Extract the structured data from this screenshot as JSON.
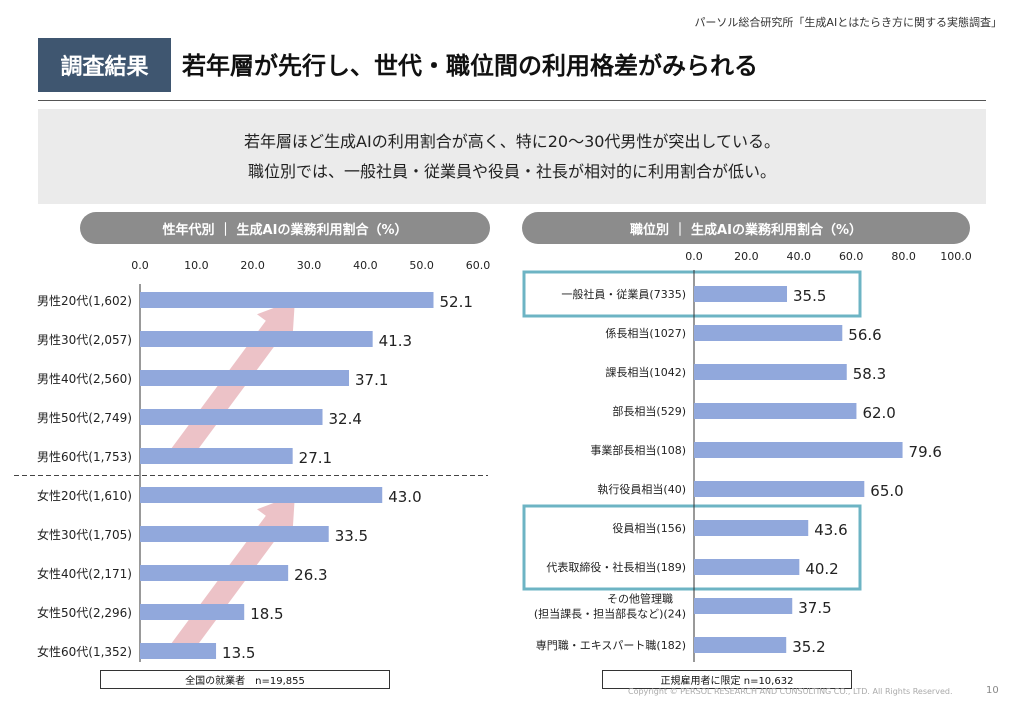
{
  "header": {
    "source": "パーソル総合研究所「生成AIとはたらき方に関する実態調査」",
    "tag": "調査結果",
    "headline": "若年層が先行し、世代・職位間の利用格差がみられる"
  },
  "summary": {
    "line1": "若年層ほど生成AIの利用割合が高く、特に20～30代男性が突出している。",
    "line2": "職位別では、一般社員・従業員や役員・社長が相対的に利用割合が低い。"
  },
  "footer": {
    "left_note": "全国の就業者　n=19,855",
    "right_note": "正規雇用者に限定 n=10,632",
    "copyright": "Copyright © PERSOL RESEARCH AND CONSULTING CO., LTD. All Rights Reserved.",
    "page": "10"
  },
  "colors": {
    "bar": "#91a8dc",
    "highlight": "#6db4c4",
    "arrow": "#e9b7bd",
    "tag": "#3f5670",
    "pill": "#8c8c8c"
  },
  "chart_data": [
    {
      "type": "bar",
      "orientation": "horizontal",
      "title": "性年代別 ｜ 生成AIの業務利用割合（%）",
      "xlim": [
        0,
        60
      ],
      "ticks": [
        "0.0",
        "10.0",
        "20.0",
        "30.0",
        "40.0",
        "50.0",
        "60.0"
      ],
      "categories": [
        "男性20代(1,602)",
        "男性30代(2,057)",
        "男性40代(2,560)",
        "男性50代(2,749)",
        "男性60代(1,753)",
        "女性20代(1,610)",
        "女性30代(1,705)",
        "女性40代(2,171)",
        "女性50代(2,296)",
        "女性60代(1,352)"
      ],
      "values": [
        52.1,
        41.3,
        37.1,
        32.4,
        27.1,
        43.0,
        33.5,
        26.3,
        18.5,
        13.5
      ],
      "value_labels": [
        "52.1",
        "41.3",
        "37.1",
        "32.4",
        "27.1",
        "43.0",
        "33.5",
        "26.3",
        "18.5",
        "13.5"
      ],
      "dashed_separator_after_index": 4,
      "trend_arrows": [
        {
          "from_index": 4,
          "to_index": 0
        },
        {
          "from_index": 9,
          "to_index": 5
        }
      ]
    },
    {
      "type": "bar",
      "orientation": "horizontal",
      "title": "職位別 ｜ 生成AIの業務利用割合（%）",
      "xlim": [
        0,
        100
      ],
      "ticks": [
        "0.0",
        "20.0",
        "40.0",
        "60.0",
        "80.0",
        "100.0"
      ],
      "categories": [
        [
          "一般社員・従業員(7335)"
        ],
        [
          "係長相当(1027)"
        ],
        [
          "課長相当(1042)"
        ],
        [
          "部長相当(529)"
        ],
        [
          "事業部長相当(108)"
        ],
        [
          "執行役員相当(40)"
        ],
        [
          "役員相当(156)"
        ],
        [
          "代表取締役・社長相当(189)"
        ],
        [
          "その他管理職",
          "(担当課長・担当部長など)(24)"
        ],
        [
          "専門職・エキスパート職(182)"
        ]
      ],
      "values": [
        35.5,
        56.6,
        58.3,
        62.0,
        79.6,
        65.0,
        43.6,
        40.2,
        37.5,
        35.2
      ],
      "value_labels": [
        "35.5",
        "56.6",
        "58.3",
        "62.0",
        "79.6",
        "65.0",
        "43.6",
        "40.2",
        "37.5",
        "35.2"
      ],
      "highlight_groups": [
        [
          0
        ],
        [
          6,
          7
        ]
      ]
    }
  ]
}
